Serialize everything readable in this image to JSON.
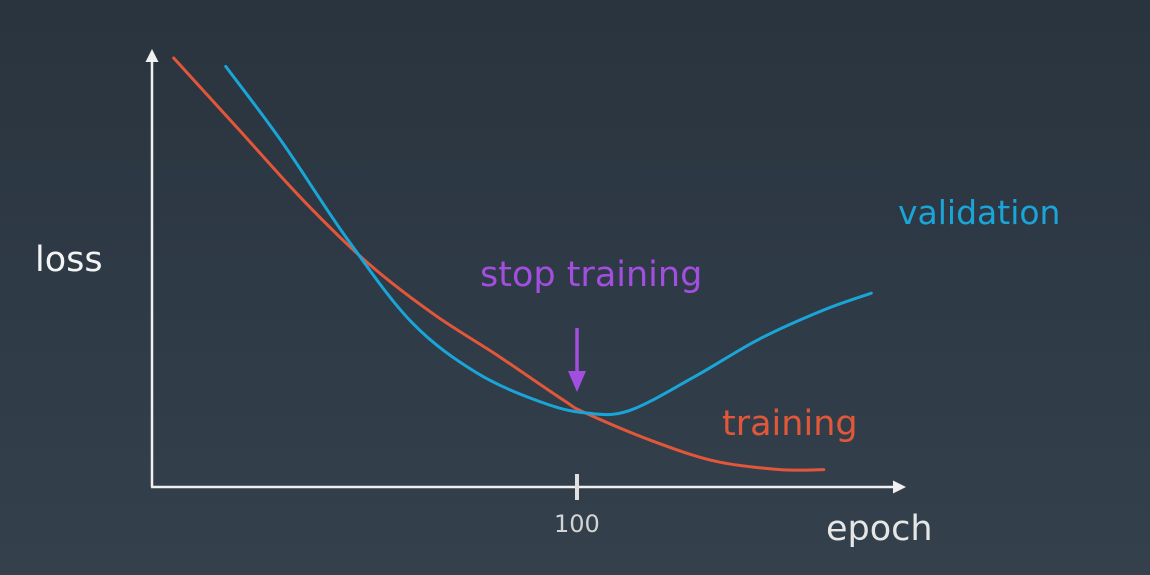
{
  "chart_data": {
    "type": "line",
    "xlabel": "epoch",
    "ylabel": "loss",
    "x_ticks": [
      {
        "value": 100,
        "label": "100"
      }
    ],
    "xlim": [
      0,
      174
    ],
    "ylim": [
      0,
      100
    ],
    "grid": false,
    "series": [
      {
        "name": "training",
        "color": "#e2573a",
        "x": [
          5,
          20,
          35,
          50,
          65,
          80,
          95,
          100,
          115,
          130,
          145,
          155
        ],
        "y": [
          100,
          83,
          66,
          51,
          39,
          29,
          18.5,
          15.5,
          9,
          4,
          2,
          2
        ]
      },
      {
        "name": "validation",
        "color": "#1aa5d8",
        "x": [
          17,
          30,
          45,
          60,
          75,
          90,
          100,
          110,
          125,
          140,
          155,
          166
        ],
        "y": [
          98,
          80,
          57,
          37,
          25,
          18,
          15.5,
          16,
          24,
          33,
          40,
          44
        ]
      }
    ],
    "annotations": [
      {
        "text": "stop training",
        "x": 100,
        "color": "#a24fe0",
        "arrow": true
      }
    ]
  },
  "labels": {
    "ylabel": "loss",
    "xlabel": "epoch",
    "tick": "100",
    "validation": "validation",
    "training": "training",
    "stop": "stop training"
  },
  "colors": {
    "axis": "#f0f0f0",
    "training": "#e2573a",
    "validation": "#1aa5d8",
    "annotation": "#a24fe0"
  }
}
